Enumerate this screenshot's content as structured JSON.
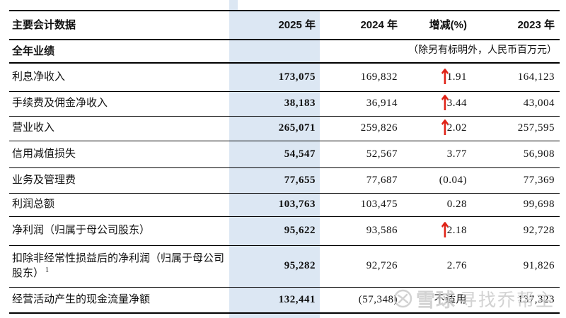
{
  "colors": {
    "highlight": "#dce7f3",
    "arrow_red": "#e02317",
    "border": "#000000",
    "watermark_gray": "#c7c7c7"
  },
  "icons": {
    "up_arrow_icon": "↑"
  },
  "header": {
    "col_label": "主要会计数据",
    "col_2025": "2025 年",
    "col_2024": "2024 年",
    "col_change": "增减(%)",
    "col_2023": "2023 年"
  },
  "section": {
    "title": "全年业绩",
    "note": "（除另有标明外，人民币百万元）"
  },
  "rows": [
    {
      "label": "利息净收入",
      "v2025": "173,075",
      "v2024": "169,832",
      "change": "1.91",
      "arrow": true,
      "v2023": "164,123"
    },
    {
      "label": "手续费及佣金净收入",
      "v2025": "38,183",
      "v2024": "36,914",
      "change": "3.44",
      "arrow": true,
      "v2023": "43,004"
    },
    {
      "label": "营业收入",
      "v2025": "265,071",
      "v2024": "259,826",
      "change": "2.02",
      "arrow": true,
      "v2023": "257,595"
    },
    {
      "label": "信用减值损失",
      "v2025": "54,547",
      "v2024": "52,567",
      "change": "3.77",
      "arrow": false,
      "v2023": "56,908"
    },
    {
      "label": "业务及管理费",
      "v2025": "77,655",
      "v2024": "77,687",
      "change": "(0.04)",
      "arrow": false,
      "v2023": "77,369"
    },
    {
      "label": "利润总额",
      "v2025": "103,763",
      "v2024": "103,475",
      "change": "0.28",
      "arrow": false,
      "v2023": "99,698"
    },
    {
      "label": "净利润（归属于母公司股东）",
      "v2025": "95,622",
      "v2024": "93,586",
      "change": "2.18",
      "arrow": true,
      "v2023": "92,728"
    },
    {
      "label": "扣除非经常性损益后的净利润（归属于母公司股东）",
      "sup": "1",
      "v2025": "95,282",
      "v2024": "92,726",
      "change": "2.76",
      "arrow": false,
      "v2023": "91,826"
    },
    {
      "label": "经营活动产生的现金流量净额",
      "v2025": "132,441",
      "v2024": "(57,348)",
      "change": "不适用",
      "arrow": false,
      "v2023": "137,323"
    }
  ],
  "watermark": {
    "brand": "雪球",
    "username": "寻找乔帮主"
  }
}
